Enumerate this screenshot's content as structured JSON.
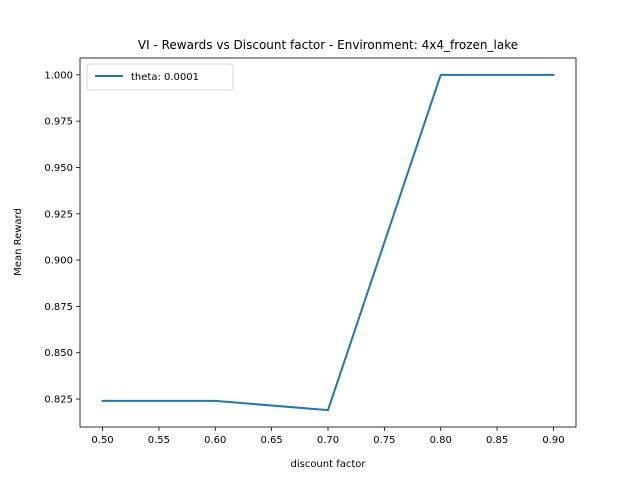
{
  "chart_data": {
    "type": "line",
    "title": "VI - Rewards vs Discount factor - Environment: 4x4_frozen_lake",
    "xlabel": "discount factor",
    "ylabel": "Mean Reward",
    "x": [
      0.5,
      0.6,
      0.7,
      0.8,
      0.9
    ],
    "series": [
      {
        "name": "theta: 0.0001",
        "color": "#1f77b4",
        "values": [
          0.824,
          0.824,
          0.819,
          1.0,
          1.0
        ]
      }
    ],
    "xlim": [
      0.48,
      0.92
    ],
    "ylim": [
      0.8099,
      1.0091
    ],
    "xticks": [
      "0.50",
      "0.55",
      "0.60",
      "0.65",
      "0.70",
      "0.75",
      "0.80",
      "0.85",
      "0.90"
    ],
    "yticks": [
      "0.825",
      "0.850",
      "0.875",
      "0.900",
      "0.925",
      "0.950",
      "0.975",
      "1.000"
    ],
    "grid": false,
    "legend": "upper-left"
  }
}
